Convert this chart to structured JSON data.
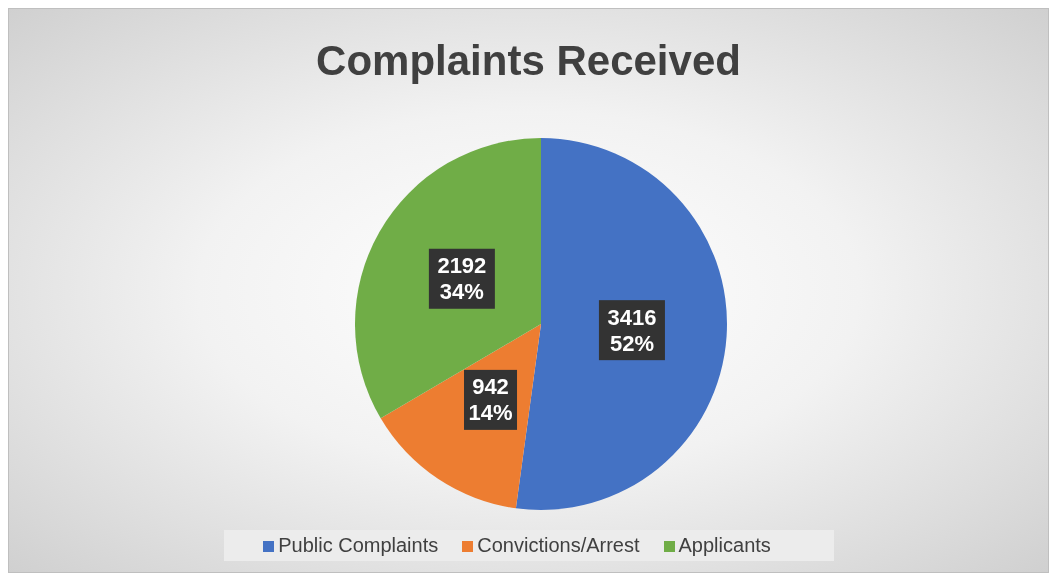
{
  "chart_data": {
    "type": "pie",
    "title": "Complaints Received",
    "categories": [
      "Public Complaints",
      "Convictions/Arrest",
      "Applicants"
    ],
    "values": [
      3416,
      942,
      2192
    ],
    "colors": [
      "#4472c4",
      "#ed7d31",
      "#70ad47"
    ],
    "value_labels": [
      "3416\n52%",
      "942\n14%",
      "2192\n34%"
    ],
    "legend": "bottom"
  }
}
